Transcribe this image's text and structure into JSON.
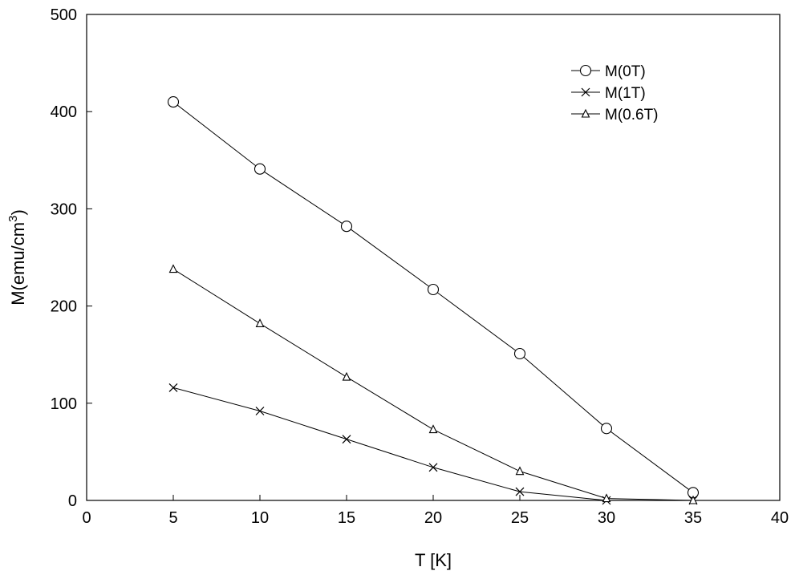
{
  "chart_data": {
    "type": "line",
    "title": "",
    "xlabel": "T [K]",
    "ylabel_main": "M(emu/cm",
    "ylabel_sup": "3",
    "ylabel_close": ")",
    "xlim": [
      0,
      40
    ],
    "ylim": [
      0,
      500
    ],
    "xticks": [
      "0",
      "5",
      "10",
      "15",
      "20",
      "25",
      "30",
      "35",
      "40"
    ],
    "yticks": [
      "0",
      "100",
      "200",
      "300",
      "400",
      "500"
    ],
    "xtick_values": [
      0,
      5,
      10,
      15,
      20,
      25,
      30,
      35,
      40
    ],
    "ytick_values": [
      0,
      100,
      200,
      300,
      400,
      500
    ],
    "grid": false,
    "legend_position": "top-right",
    "series": [
      {
        "name": "M(0T)",
        "marker": "circle",
        "color": "#000000",
        "x": [
          5,
          10,
          15,
          20,
          25,
          30,
          35
        ],
        "y": [
          410,
          341,
          282,
          217,
          151,
          74,
          8
        ]
      },
      {
        "name": "M(1T)",
        "marker": "x",
        "color": "#000000",
        "x": [
          5,
          10,
          15,
          20,
          25,
          30,
          35
        ],
        "y": [
          116,
          92,
          63,
          34,
          9,
          0,
          0
        ]
      },
      {
        "name": "M(0.6T)",
        "marker": "triangle",
        "color": "#000000",
        "x": [
          5,
          10,
          15,
          20,
          25,
          30,
          35
        ],
        "y": [
          238,
          182,
          127,
          73,
          30,
          2,
          0
        ]
      }
    ]
  }
}
